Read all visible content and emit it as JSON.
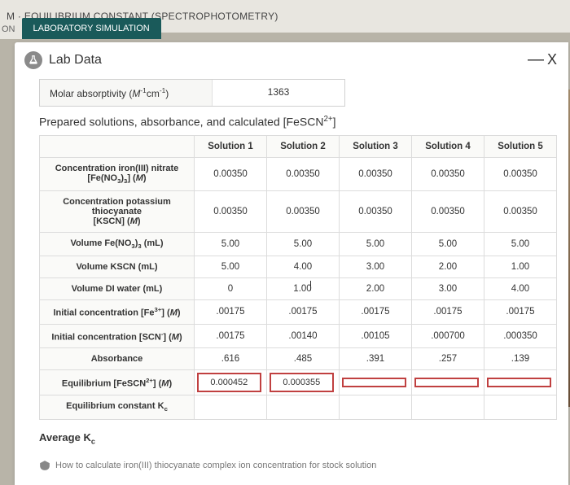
{
  "header": {
    "title": "M · EQUILIBRIUM CONSTANT (SPECTROPHOTOMETRY)"
  },
  "tabs": {
    "partial": "ON",
    "active": "LABORATORY SIMULATION"
  },
  "panel": {
    "title": "Lab Data",
    "close_dash": "—",
    "close_x": "X"
  },
  "molar": {
    "label_html": "Molar absorptivity (<i>M</i><sup>-1</sup>cm<sup>-1</sup>)",
    "value": "1363"
  },
  "section_title_html": "Prepared solutions, absorbance, and calculated [FeSCN<sup>2+</sup>]",
  "table": {
    "cols": [
      "Solution 1",
      "Solution 2",
      "Solution 3",
      "Solution 4",
      "Solution 5"
    ],
    "rows": [
      {
        "label_html": "Concentration iron(III) nitrate<br>[Fe(NO<sub>3</sub>)<sub>3</sub>] (<i>M</i>)",
        "vals": [
          "0.00350",
          "0.00350",
          "0.00350",
          "0.00350",
          "0.00350"
        ]
      },
      {
        "label_html": "Concentration potassium thiocyanate<br>[KSCN] (<i>M</i>)",
        "vals": [
          "0.00350",
          "0.00350",
          "0.00350",
          "0.00350",
          "0.00350"
        ]
      },
      {
        "label_html": "Volume Fe(NO<sub>3</sub>)<sub>3</sub> (mL)",
        "vals": [
          "5.00",
          "5.00",
          "5.00",
          "5.00",
          "5.00"
        ]
      },
      {
        "label_html": "Volume KSCN (mL)",
        "vals": [
          "5.00",
          "4.00",
          "3.00",
          "2.00",
          "1.00"
        ]
      },
      {
        "label_html": "Volume DI water (mL)",
        "vals": [
          "0",
          "1.00",
          "2.00",
          "3.00",
          "4.00"
        ],
        "cursor_col": 1
      },
      {
        "label_html": "Initial concentration [Fe<sup>3+</sup>] (<i>M</i>)",
        "vals": [
          ".00175",
          ".00175",
          ".00175",
          ".00175",
          ".00175"
        ]
      },
      {
        "label_html": "Initial concentration [SCN<sup>-</sup>] (<i>M</i>)",
        "vals": [
          ".00175",
          ".00140",
          ".00105",
          ".000700",
          ".000350"
        ]
      },
      {
        "label_html": "Absorbance",
        "vals": [
          ".616",
          ".485",
          ".391",
          ".257",
          ".139"
        ]
      },
      {
        "label_html": "Equilibrium [FeSCN<sup>2+</sup>] (<i>M</i>)",
        "input": true,
        "vals": [
          "0.000452",
          "0.000355",
          "",
          "",
          ""
        ]
      },
      {
        "label_html": "Equilibrium constant K<sub>c</sub>",
        "vals": [
          "",
          "",
          "",
          "",
          ""
        ]
      }
    ]
  },
  "average_html": "Average K<sub>c</sub>",
  "hint": "How to calculate iron(III) thiocyanate complex ion concentration for stock solution",
  "colors": {
    "tab_active_bg": "#1a5a5a",
    "input_border": "#c04040",
    "panel_bg": "#ffffff",
    "page_bg": "#b8b4a8"
  }
}
